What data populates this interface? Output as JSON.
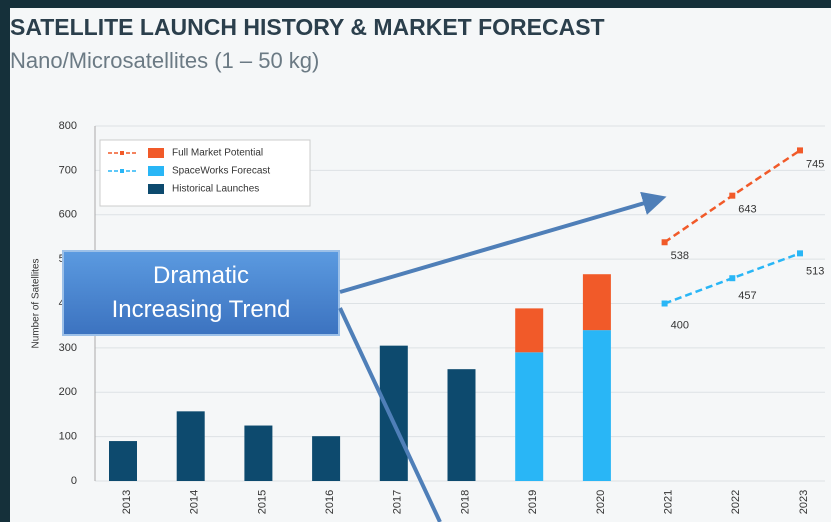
{
  "chart_data": {
    "type": "bar",
    "title": "SATELLITE LAUNCH HISTORY & MARKET FORECAST",
    "subtitle": "Nano/Microsatellites (1 – 50 kg)",
    "y_label": "Number of Satellites",
    "annotation": "Dramatic Increasing Trend",
    "categories": [
      "2013",
      "2014",
      "2015",
      "2016",
      "2017",
      "2018",
      "2019",
      "2020",
      "2021",
      "2022",
      "2023"
    ],
    "series": [
      {
        "name": "Full Market Potential",
        "color": "#f15a29",
        "values": [
          null,
          null,
          null,
          null,
          null,
          null,
          99,
          126,
          null,
          null,
          null
        ],
        "line_values": [
          null,
          null,
          null,
          null,
          null,
          null,
          null,
          null,
          538,
          643,
          745
        ]
      },
      {
        "name": "SpaceWorks Forecast",
        "color": "#29b6f6",
        "values": [
          null,
          null,
          null,
          null,
          null,
          null,
          290,
          340,
          null,
          null,
          null
        ],
        "line_values": [
          null,
          null,
          null,
          null,
          null,
          null,
          null,
          null,
          400,
          457,
          513
        ]
      },
      {
        "name": "Historical Launches",
        "color": "#0d4a6e",
        "values": [
          90,
          157,
          125,
          101,
          305,
          252,
          null,
          null,
          null,
          null,
          null
        ]
      }
    ],
    "ylim": [
      0,
      800
    ],
    "yticks": [
      0,
      100,
      200,
      300,
      400,
      500,
      600,
      700,
      800
    ],
    "grid": true,
    "stacked": true
  }
}
